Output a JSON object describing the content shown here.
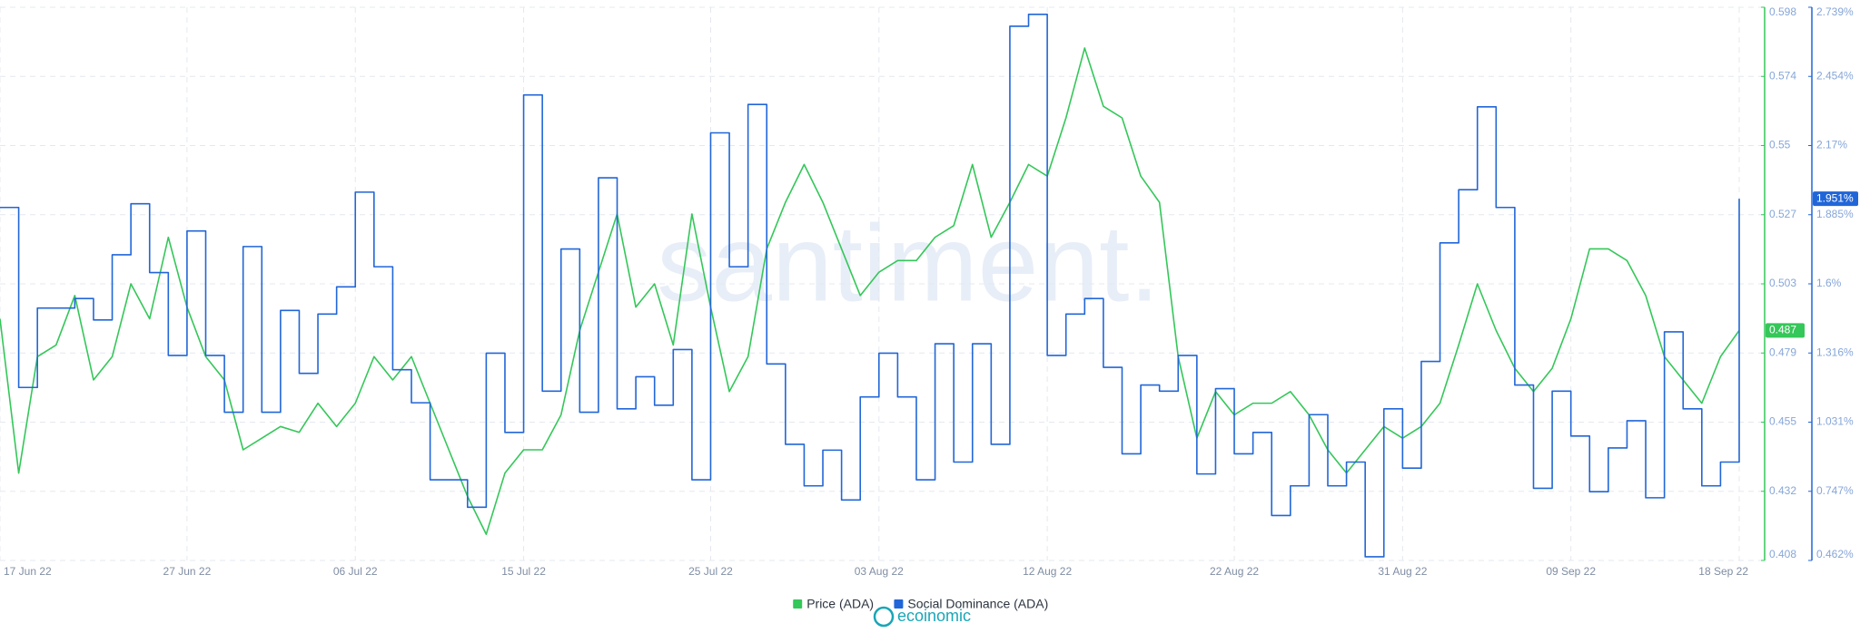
{
  "chart_data": {
    "type": "line",
    "watermark": "santiment.",
    "logo": "ecoinomic",
    "x": [
      "17 Jun 22",
      "18 Jun 22",
      "19 Jun 22",
      "20 Jun 22",
      "21 Jun 22",
      "22 Jun 22",
      "23 Jun 22",
      "24 Jun 22",
      "25 Jun 22",
      "26 Jun 22",
      "27 Jun 22",
      "28 Jun 22",
      "29 Jun 22",
      "30 Jun 22",
      "01 Jul 22",
      "02 Jul 22",
      "03 Jul 22",
      "04 Jul 22",
      "05 Jul 22",
      "06 Jul 22",
      "07 Jul 22",
      "08 Jul 22",
      "09 Jul 22",
      "10 Jul 22",
      "11 Jul 22",
      "12 Jul 22",
      "13 Jul 22",
      "14 Jul 22",
      "15 Jul 22",
      "16 Jul 22",
      "17 Jul 22",
      "18 Jul 22",
      "19 Jul 22",
      "20 Jul 22",
      "21 Jul 22",
      "22 Jul 22",
      "23 Jul 22",
      "24 Jul 22",
      "25 Jul 22",
      "26 Jul 22",
      "27 Jul 22",
      "28 Jul 22",
      "29 Jul 22",
      "30 Jul 22",
      "31 Jul 22",
      "01 Aug 22",
      "02 Aug 22",
      "03 Aug 22",
      "04 Aug 22",
      "05 Aug 22",
      "06 Aug 22",
      "07 Aug 22",
      "08 Aug 22",
      "09 Aug 22",
      "10 Aug 22",
      "11 Aug 22",
      "12 Aug 22",
      "13 Aug 22",
      "14 Aug 22",
      "15 Aug 22",
      "16 Aug 22",
      "17 Aug 22",
      "18 Aug 22",
      "19 Aug 22",
      "20 Aug 22",
      "21 Aug 22",
      "22 Aug 22",
      "23 Aug 22",
      "24 Aug 22",
      "25 Aug 22",
      "26 Aug 22",
      "27 Aug 22",
      "28 Aug 22",
      "29 Aug 22",
      "30 Aug 22",
      "31 Aug 22",
      "01 Sep 22",
      "02 Sep 22",
      "03 Sep 22",
      "04 Sep 22",
      "05 Sep 22",
      "06 Sep 22",
      "07 Sep 22",
      "08 Sep 22",
      "09 Sep 22",
      "10 Sep 22",
      "11 Sep 22",
      "12 Sep 22",
      "13 Sep 22",
      "14 Sep 22",
      "15 Sep 22",
      "16 Sep 22",
      "17 Sep 22",
      "18 Sep 22"
    ],
    "xticks": [
      "17 Jun 22",
      "27 Jun 22",
      "06 Jul 22",
      "15 Jul 22",
      "25 Jul 22",
      "03 Aug 22",
      "12 Aug 22",
      "22 Aug 22",
      "31 Aug 22",
      "09 Sep 22",
      "18 Sep 22"
    ],
    "ylim": [
      0.408,
      0.598
    ],
    "yticks": [
      0.408,
      {
        "value": 0.43175,
        "label": "0.432"
      },
      {
        "value": 0.4555,
        "label": "0.455"
      },
      {
        "value": 0.47925,
        "label": "0.479"
      },
      0.503,
      {
        "value": 0.52675,
        "label": "0.527"
      },
      {
        "value": 0.5505,
        "label": "0.55"
      },
      {
        "value": 0.57425,
        "label": "0.574"
      },
      0.598
    ],
    "y2lim": [
      0.462,
      2.739
    ],
    "y2ticks": [
      {
        "value": 0.462,
        "label": "0.462%"
      },
      {
        "value": 0.746625,
        "label": "0.747%"
      },
      {
        "value": 1.03125,
        "label": "1.031%"
      },
      {
        "value": 1.315875,
        "label": "1.316%"
      },
      {
        "value": 1.6005,
        "label": "1.6%"
      },
      {
        "value": 1.885125,
        "label": "1.885%"
      },
      {
        "value": 2.16975,
        "label": "2.17%"
      },
      {
        "value": 2.454375,
        "label": "2.454%"
      },
      {
        "value": 2.739,
        "label": "2.739%"
      }
    ],
    "grid": true,
    "series": [
      {
        "name": "Price (ADA)",
        "color": "#34c759",
        "axis": "y",
        "value_label": "0.487",
        "values": [
          0.491,
          0.438,
          0.478,
          0.482,
          0.499,
          0.47,
          0.478,
          0.503,
          0.491,
          0.519,
          0.495,
          0.478,
          0.47,
          0.446,
          0.45,
          0.454,
          0.452,
          0.462,
          0.454,
          0.462,
          0.478,
          0.47,
          0.478,
          0.462,
          0.446,
          0.43,
          0.417,
          0.438,
          0.446,
          0.446,
          0.458,
          0.487,
          0.507,
          0.527,
          0.495,
          0.503,
          0.482,
          0.527,
          0.495,
          0.466,
          0.478,
          0.515,
          0.531,
          0.544,
          0.531,
          0.515,
          0.499,
          0.507,
          0.511,
          0.511,
          0.519,
          0.523,
          0.544,
          0.519,
          0.531,
          0.544,
          0.54,
          0.56,
          0.584,
          0.564,
          0.56,
          0.54,
          0.531,
          0.478,
          0.45,
          0.466,
          0.458,
          0.462,
          0.462,
          0.466,
          0.458,
          0.446,
          0.438,
          0.446,
          0.454,
          0.45,
          0.454,
          0.462,
          0.482,
          0.503,
          0.487,
          0.474,
          0.466,
          0.474,
          0.491,
          0.515,
          0.515,
          0.511,
          0.499,
          0.478,
          0.47,
          0.462,
          0.478,
          0.487
        ]
      },
      {
        "name": "Social Dominance (ADA)",
        "color": "#2166d8",
        "axis": "y2",
        "step": true,
        "value_label": "1.951%",
        "values": [
          1.915,
          1.174,
          1.501,
          1.501,
          1.54,
          1.452,
          1.72,
          1.93,
          1.647,
          1.306,
          1.818,
          1.306,
          1.072,
          1.754,
          1.072,
          1.491,
          1.232,
          1.476,
          1.588,
          1.978,
          1.671,
          1.247,
          1.111,
          0.794,
          0.794,
          0.681,
          1.315,
          0.989,
          2.378,
          1.159,
          1.744,
          1.072,
          2.037,
          1.086,
          1.218,
          1.101,
          1.33,
          0.794,
          2.222,
          1.671,
          2.339,
          1.271,
          0.94,
          0.769,
          0.916,
          0.711,
          1.135,
          1.315,
          1.135,
          0.794,
          1.354,
          0.867,
          1.354,
          0.94,
          2.661,
          2.71,
          1.306,
          1.476,
          1.54,
          1.257,
          0.901,
          1.184,
          1.159,
          1.306,
          0.818,
          1.169,
          0.901,
          0.989,
          0.647,
          0.769,
          1.062,
          0.769,
          0.867,
          0.477,
          1.086,
          0.842,
          1.281,
          1.769,
          1.988,
          2.329,
          1.915,
          1.184,
          0.759,
          1.159,
          0.974,
          0.745,
          0.925,
          1.037,
          0.72,
          1.403,
          1.086,
          0.769,
          0.867,
          1.951
        ]
      }
    ]
  }
}
